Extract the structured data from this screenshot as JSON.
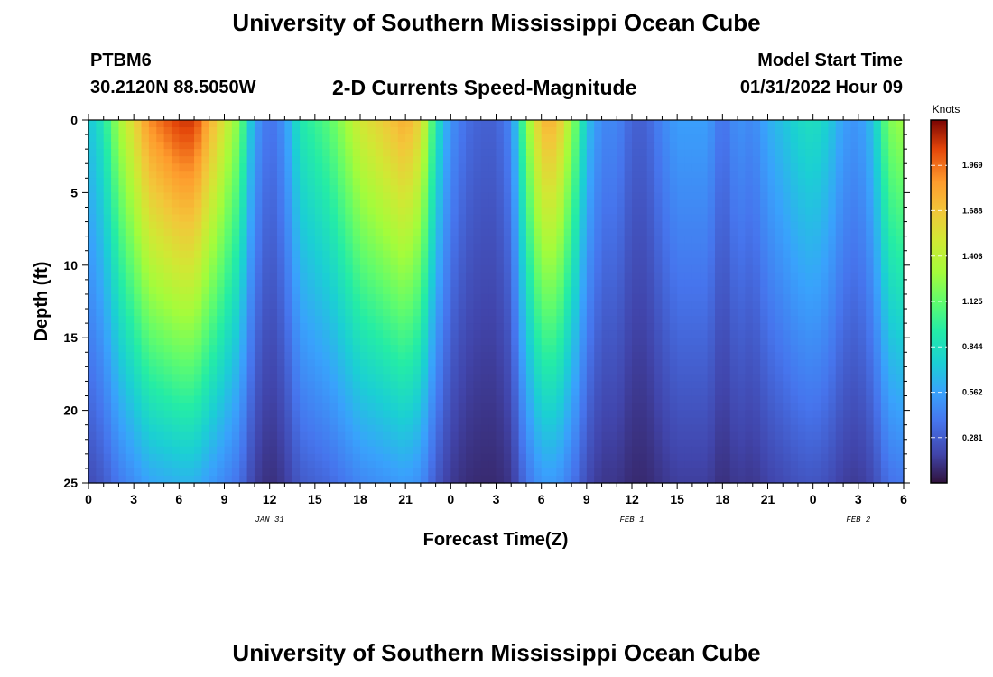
{
  "header": {
    "title": "University of Southern Mississippi Ocean Cube",
    "station": "PTBM6",
    "coordinates": "30.2120N  88.5050W",
    "subtitle": "2-D Currents Speed-Magnitude",
    "model_start_label": "Model Start Time",
    "model_start_value": "01/31/2022 Hour 09"
  },
  "footer": {
    "title": "University of Southern Mississippi Ocean Cube"
  },
  "chart_data": {
    "type": "heatmap",
    "title": "2-D Currents Speed-Magnitude",
    "xlabel": "Forecast Time(Z)",
    "ylabel": "Depth (ft)",
    "x_hours_from_jan31_00z": [
      0,
      54
    ],
    "ylim": [
      0,
      25
    ],
    "y_ticks": [
      0,
      5,
      10,
      15,
      20,
      25
    ],
    "x_tick_labels": [
      "0",
      "3",
      "6",
      "9",
      "12",
      "15",
      "18",
      "21",
      "0",
      "3",
      "6",
      "9",
      "12",
      "15",
      "18",
      "21",
      "0",
      "3",
      "6"
    ],
    "date_labels": [
      {
        "label": "JAN 31",
        "hour": 12
      },
      {
        "label": "FEB 1",
        "hour": 36
      },
      {
        "label": "FEB 2",
        "hour": 51
      }
    ],
    "colorbar": {
      "unit": "Knots",
      "min": 0,
      "max": 2.25,
      "tick_values": [
        0.281,
        0.562,
        0.844,
        1.125,
        1.406,
        1.688,
        1.969
      ],
      "tick_labels": [
        "0.281",
        "0.562",
        "0.844",
        "1.125",
        "1.406",
        "1.688",
        "1.969"
      ]
    },
    "surface_speed_profile_knots": {
      "hours": [
        0,
        1,
        2,
        3,
        4,
        5,
        6,
        7,
        8,
        9,
        10,
        11,
        12,
        13,
        14,
        15,
        16,
        17,
        18,
        19,
        20,
        21,
        22,
        23,
        24,
        25,
        26,
        27,
        28,
        29,
        30,
        31,
        32,
        33,
        34,
        35,
        36,
        37,
        38,
        39,
        40,
        41,
        42,
        43,
        44,
        45,
        46,
        47,
        48,
        49,
        50,
        51,
        52,
        53,
        54
      ],
      "values": [
        0.7,
        0.9,
        1.3,
        1.6,
        1.9,
        2.0,
        2.1,
        2.1,
        1.8,
        1.5,
        1.2,
        0.55,
        0.35,
        0.5,
        0.9,
        1.0,
        1.1,
        1.3,
        1.5,
        1.6,
        1.7,
        1.8,
        1.6,
        0.9,
        0.5,
        0.35,
        0.3,
        0.3,
        0.45,
        1.2,
        1.75,
        1.75,
        1.3,
        0.7,
        0.45,
        0.45,
        0.3,
        0.3,
        0.45,
        0.55,
        0.55,
        0.55,
        0.35,
        0.5,
        0.45,
        0.6,
        0.7,
        0.8,
        0.85,
        0.75,
        0.55,
        0.5,
        0.7,
        1.2,
        1.3
      ]
    },
    "depth_decay_factor_at_25ft": 0.3
  }
}
